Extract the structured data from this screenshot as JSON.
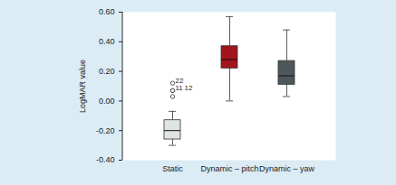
{
  "chart_data": {
    "type": "box",
    "ylabel": "LogMAR value",
    "categories": [
      "Static",
      "Dynamic – pitch",
      "Dynamic – yaw"
    ],
    "boxes": [
      {
        "min": -0.3,
        "q1": -0.26,
        "median": -0.2,
        "q3": -0.13,
        "max": -0.07,
        "outliers": [
          {
            "value": 0.12,
            "label": "22"
          },
          {
            "value": 0.07,
            "label": "11"
          },
          {
            "value": 0.07,
            "label": "12"
          },
          {
            "value": 0.03
          }
        ]
      },
      {
        "min": 0.0,
        "q1": 0.22,
        "median": 0.28,
        "q3": 0.37,
        "max": 0.57,
        "outliers": []
      },
      {
        "min": 0.03,
        "q1": 0.11,
        "median": 0.17,
        "q3": 0.27,
        "max": 0.48,
        "outliers": []
      }
    ],
    "colors": [
      "#dfe5e5",
      "#a3141b",
      "#4e575c"
    ],
    "ylim": [
      -0.4,
      0.6
    ],
    "yticks": [
      {
        "value": -0.4,
        "label": "-0.40"
      },
      {
        "value": -0.2,
        "label": "-0.20"
      },
      {
        "value": 0,
        "label": "0.00"
      },
      {
        "value": 0.2,
        "label": "0.20"
      },
      {
        "value": 0.4,
        "label": "0.40"
      },
      {
        "value": 0.6,
        "label": "0.60"
      }
    ]
  }
}
